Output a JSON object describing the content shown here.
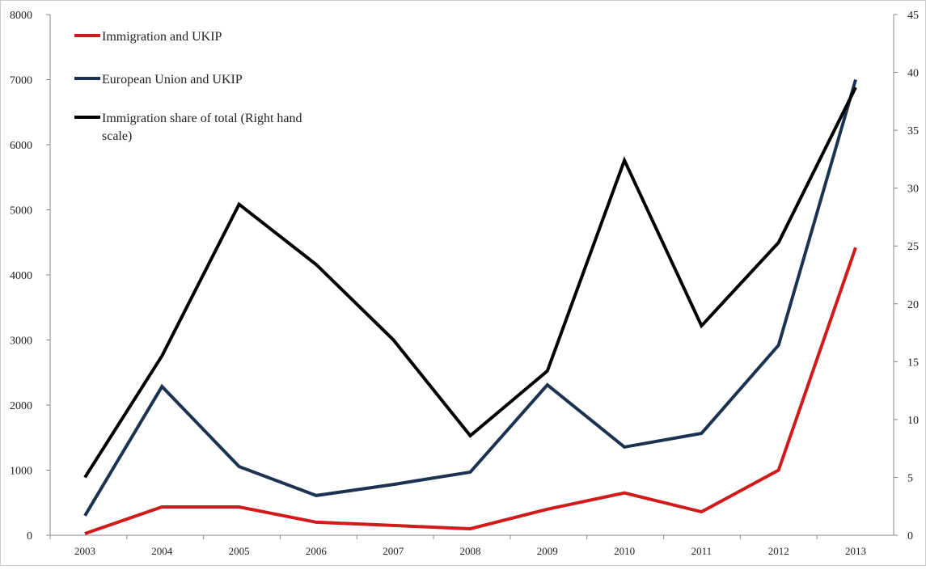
{
  "chart_data": {
    "type": "line",
    "title": "",
    "xlabel": "",
    "ylabel": "",
    "y2label": "",
    "categories": [
      "2003",
      "2004",
      "2005",
      "2006",
      "2007",
      "2008",
      "2009",
      "2010",
      "2011",
      "2012",
      "2013"
    ],
    "ylim": [
      0,
      8000
    ],
    "yticks": [
      "0",
      "1000",
      "2000",
      "3000",
      "4000",
      "5000",
      "6000",
      "7000",
      "8000"
    ],
    "y2lim": [
      0,
      45
    ],
    "y2ticks": [
      "0",
      "5",
      "10",
      "15",
      "20",
      "25",
      "30",
      "35",
      "40",
      "45"
    ],
    "grid": false,
    "legend_position": "top-left",
    "series": [
      {
        "name": "Immigration and UKIP",
        "axis": "left",
        "color": "#d11a1a",
        "values": [
          25,
          435,
          435,
          200,
          150,
          100,
          400,
          650,
          360,
          1000,
          4420
        ]
      },
      {
        "name": "European Union and UKIP",
        "axis": "left",
        "color": "#1b3350",
        "values": [
          300,
          2285,
          1055,
          610,
          780,
          970,
          2310,
          1355,
          1565,
          2920,
          7000
        ]
      },
      {
        "name": "Immigration share of total (Right hand scale)",
        "axis": "right",
        "color": "#000000",
        "values": [
          5.0,
          15.5,
          28.6,
          23.4,
          16.9,
          8.6,
          14.2,
          32.4,
          18.1,
          25.3,
          38.7
        ]
      }
    ]
  }
}
